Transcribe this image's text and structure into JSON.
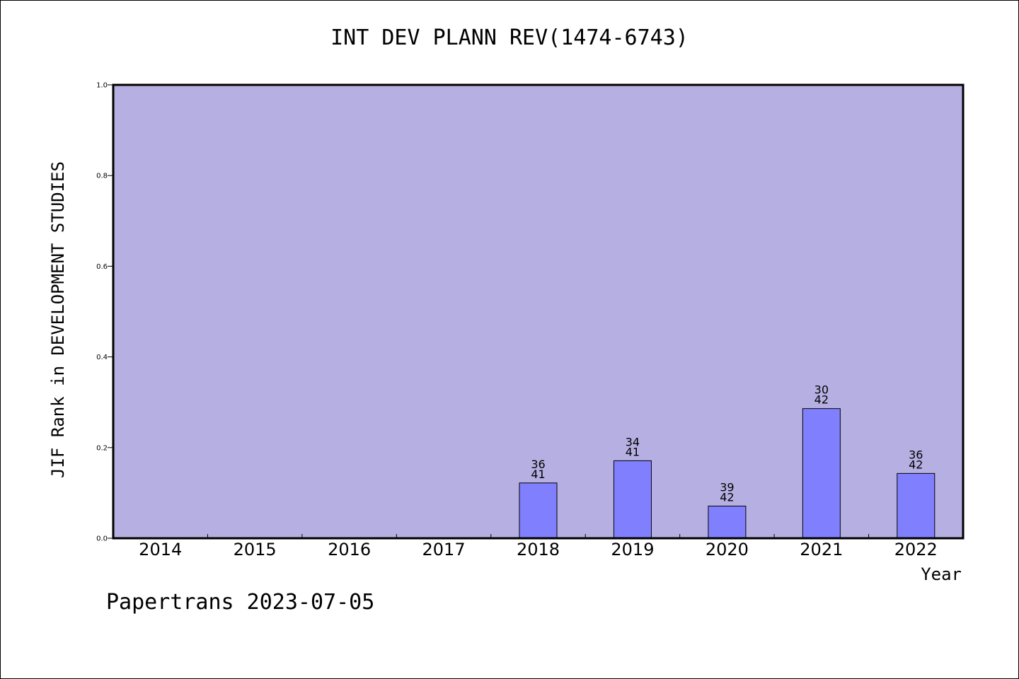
{
  "title": "INT DEV PLANN REV(1474-6743)",
  "footer": "Papertrans 2023-07-05",
  "colors": {
    "plot_background": "#b6b0e2",
    "bar_fill": "#8080ff",
    "axis": "#000000"
  },
  "chart_data": {
    "type": "bar",
    "title": "INT DEV PLANN REV(1474-6743)",
    "xlabel": "Year",
    "ylabel": "JIF Rank in DEVELOPMENT STUDIES",
    "ylim": [
      0,
      1.0
    ],
    "yticks": [
      "0.0",
      "0.2",
      "0.4",
      "0.6",
      "0.8",
      "1.0"
    ],
    "categories": [
      "2014",
      "2015",
      "2016",
      "2017",
      "2018",
      "2019",
      "2020",
      "2021",
      "2022"
    ],
    "values": [
      null,
      null,
      null,
      null,
      0.122,
      0.171,
      0.071,
      0.286,
      0.143
    ],
    "labels": [
      null,
      null,
      null,
      null,
      [
        "36",
        "41"
      ],
      [
        "34",
        "41"
      ],
      [
        "39",
        "42"
      ],
      [
        "30",
        "42"
      ],
      [
        "36",
        "42"
      ]
    ],
    "grid": false,
    "legend": "none"
  }
}
